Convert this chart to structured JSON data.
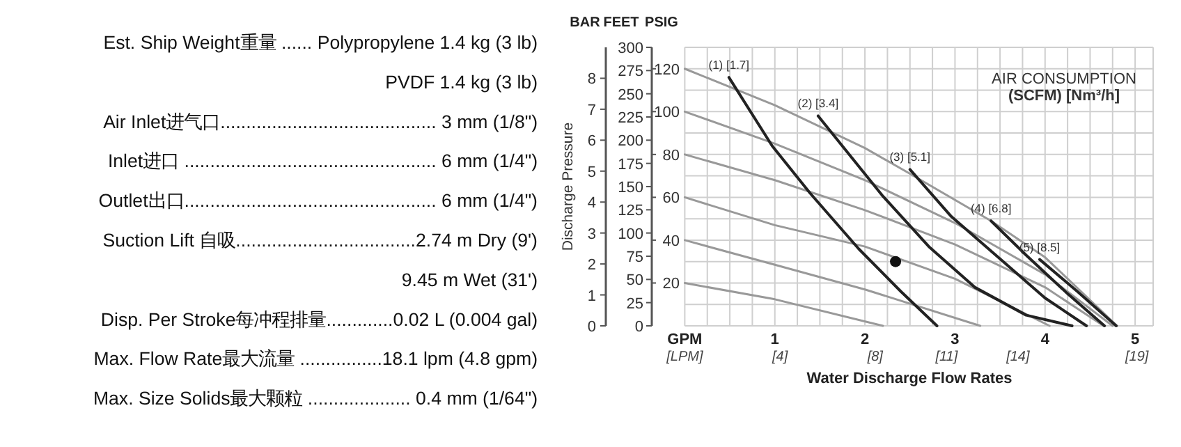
{
  "chart_data": [
    {
      "type": "other",
      "annotations": [
        "Est. Ship Weight重量 ...... Polypropylene 1.4 kg (3 lb)",
        "PVDF 1.4 kg (3 lb)",
        "Air Inlet进气口.......................................... 3 mm (1/8\")",
        "Inlet进口 ................................................. 6 mm (1/4\")",
        "Outlet出口................................................. 6 mm (1/4\")",
        "Suction Lift  自吸...................................2.74 m Dry (9')",
        "9.45 m Wet (31')",
        "Disp. Per Stroke每冲程排量.............0.02 L (0.004 gal)",
        "Max. Flow Rate最大流量 ................18.1 lpm (4.8 gpm)",
        "Max. Size Solids最大颗粒 .................... 0.4 mm (1/64\")"
      ]
    },
    {
      "type": "line",
      "xlabel": "Water Discharge Flow Rates",
      "ylabel": "PSIG",
      "y2label": "FEET",
      "y3label": "BAR",
      "xlim": [
        0,
        5.2
      ],
      "x2label": "[LPM]",
      "x2lim": [
        0,
        19.68
      ],
      "x2ticks": [
        {
          "value": 4,
          "label": "[4]"
        },
        {
          "value": 8,
          "label": "[8]"
        },
        {
          "value": 11,
          "label": "[11]"
        },
        {
          "value": 14,
          "label": "[14]"
        },
        {
          "value": 19,
          "label": "[19]"
        }
      ],
      "xticks": [
        {
          "value": 0,
          "label": "GPM"
        },
        {
          "value": 0.25,
          "label": null
        },
        {
          "value": 0.5,
          "label": null
        },
        {
          "value": 0.75,
          "label": null
        },
        1,
        {
          "value": 1.25,
          "label": null
        },
        {
          "value": 1.5,
          "label": null
        },
        {
          "value": 1.75,
          "label": null
        },
        2,
        {
          "value": 2.25,
          "label": null
        },
        {
          "value": 2.5,
          "label": null
        },
        {
          "value": 2.75,
          "label": null
        },
        3,
        {
          "value": 3.25,
          "label": null
        },
        {
          "value": 3.5,
          "label": null
        },
        {
          "value": 3.75,
          "label": null
        },
        4,
        {
          "value": 4.25,
          "label": null
        },
        {
          "value": 4.5,
          "label": null
        },
        {
          "value": 4.75,
          "label": null
        },
        5
      ],
      "ylim": [
        0,
        130
      ],
      "yticks": [
        {
          "value": 0,
          "label": null
        },
        {
          "value": 10,
          "label": null
        },
        20,
        {
          "value": 30,
          "label": null
        },
        40,
        {
          "value": 50,
          "label": null
        },
        60,
        {
          "value": 70,
          "label": null
        },
        80,
        {
          "value": 90,
          "label": null
        },
        100,
        {
          "value": 110,
          "label": null
        },
        120,
        {
          "value": 130,
          "label": null
        }
      ],
      "y2lim": [
        0,
        300
      ],
      "y2ticks": [
        0,
        25,
        50,
        75,
        100,
        125,
        150,
        175,
        200,
        225,
        250,
        275,
        300
      ],
      "y3lim": [
        0,
        9
      ],
      "y3ticks": [
        0,
        1,
        2,
        3,
        4,
        5,
        6,
        7,
        8
      ],
      "grid": true,
      "series": [
        {
          "color": "#999999",
          "x": [
            0,
            1,
            2,
            2.5,
            3.4,
            4,
            4.8
          ],
          "values": [
            120,
            103,
            83,
            71,
            49,
            32,
            0
          ]
        },
        {
          "color": "#999999",
          "x": [
            0,
            1,
            2,
            3,
            4,
            4.75
          ],
          "values": [
            100,
            85,
            68,
            48,
            24,
            0
          ]
        },
        {
          "color": "#999999",
          "x": [
            0,
            1,
            2,
            3,
            4,
            4.65
          ],
          "values": [
            80,
            68,
            54,
            38,
            18,
            0
          ]
        },
        {
          "color": "#999999",
          "x": [
            0,
            1,
            2,
            3,
            4.05
          ],
          "values": [
            60,
            47,
            37,
            22,
            0
          ]
        },
        {
          "color": "#999999",
          "x": [
            0,
            1,
            2,
            3.28
          ],
          "values": [
            40,
            28.5,
            17,
            0
          ]
        },
        {
          "color": "#999999",
          "x": [
            0,
            1,
            2.2
          ],
          "values": [
            20,
            12.4,
            0
          ]
        },
        {
          "color": "#222222",
          "x": [
            0.49,
            0.97,
            1.39,
            1.93,
            2.4,
            2.8
          ],
          "values": [
            116,
            84,
            62,
            36,
            16,
            0
          ]
        },
        {
          "color": "#222222",
          "x": [
            1.48,
            2.19,
            2.71,
            3.22,
            3.79,
            4.3
          ],
          "values": [
            98,
            61,
            37,
            18,
            5,
            0
          ]
        },
        {
          "color": "#222222",
          "x": [
            2.5,
            2.96,
            3.48,
            4.0,
            4.46
          ],
          "values": [
            73,
            51,
            32,
            13,
            0
          ]
        },
        {
          "color": "#222222",
          "x": [
            3.4,
            3.79,
            4.25,
            4.66
          ],
          "values": [
            49,
            33,
            15,
            0
          ]
        },
        {
          "color": "#222222",
          "x": [
            3.94,
            4.36,
            4.79
          ],
          "values": [
            31,
            16,
            0
          ]
        },
        {
          "type": "scatter",
          "color": "#111111",
          "x": [
            2.34
          ],
          "values": [
            30
          ]
        }
      ],
      "annotations": [
        {
          "text": "(1) [1.7]",
          "x": 0.49,
          "y": 116
        },
        {
          "text": "(2) [3.4]",
          "x": 1.48,
          "y": 98
        },
        {
          "text": "(3) [5.1]",
          "x": 2.5,
          "y": 73
        },
        {
          "text": "(4) [6.8]",
          "x": 3.4,
          "y": 49
        },
        {
          "text": "(5) [8.5]",
          "x": 3.94,
          "y": 31
        },
        "AIR CONSUMPTION",
        "(SCFM) [Nm³/h]",
        "Discharge Pressure"
      ]
    }
  ]
}
